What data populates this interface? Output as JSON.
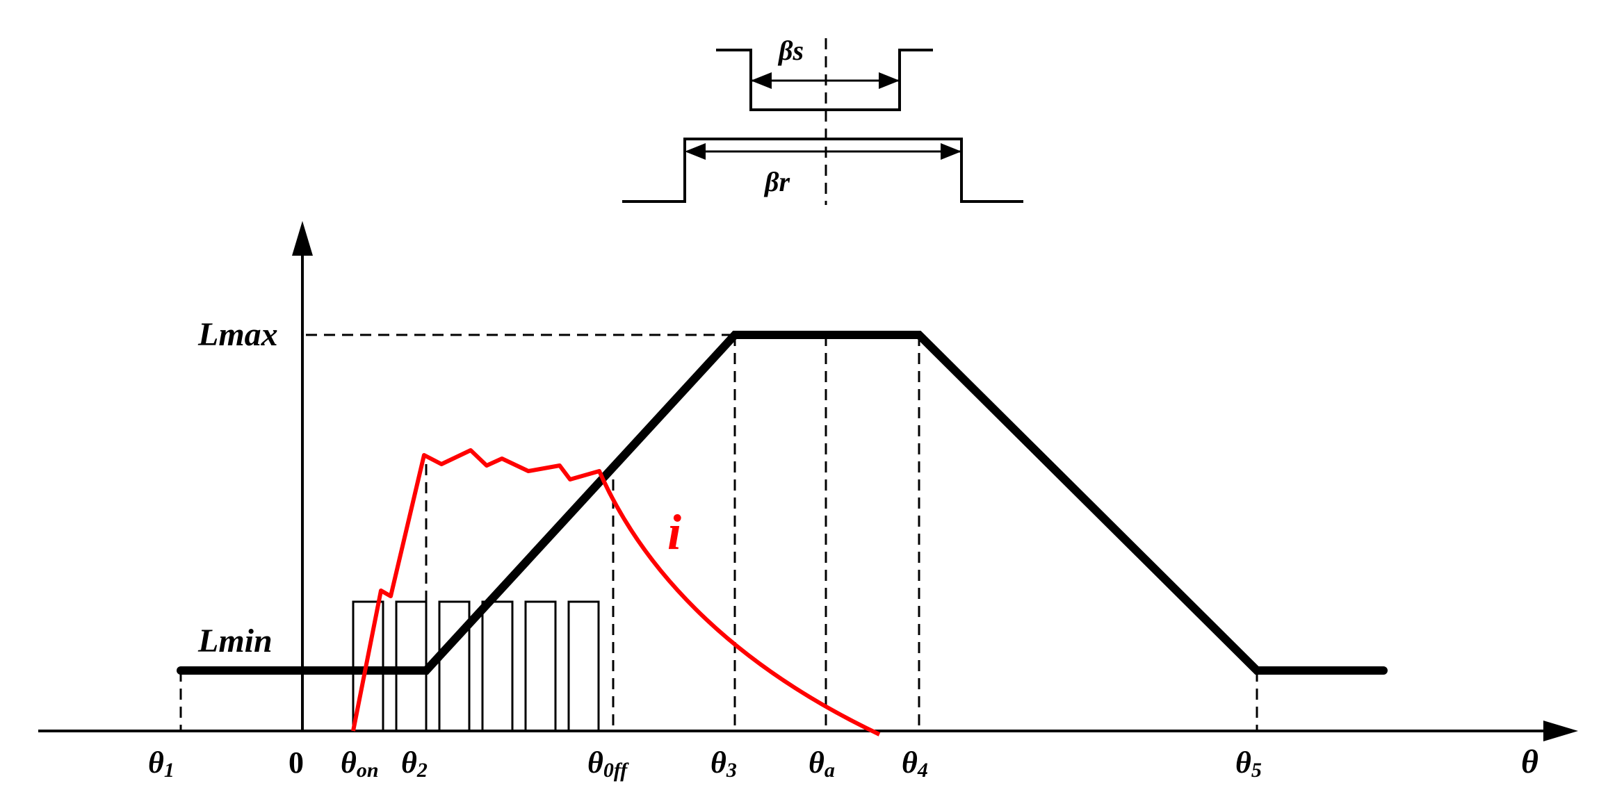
{
  "colors": {
    "ink": "#000000",
    "current": "#ff0000",
    "background": "#ffffff"
  },
  "labels": {
    "lmax": "Lmax",
    "lmin": "Lmin",
    "current": "i",
    "beta_s": "βs",
    "beta_r": "βr",
    "axis_theta": "θ"
  },
  "ticks": {
    "theta1": {
      "sym": "θ",
      "sub": "1"
    },
    "zero": "0",
    "theta_on": {
      "sym": "θ",
      "sub": "on"
    },
    "theta2": {
      "sym": "θ",
      "sub": "2"
    },
    "theta_off": {
      "sym": "θ",
      "sub": "0ff"
    },
    "theta3": {
      "sym": "θ",
      "sub": "3"
    },
    "theta_a": {
      "sym": "θ",
      "sub": "a"
    },
    "theta4": {
      "sym": "θ",
      "sub": "4"
    },
    "theta5": {
      "sym": "θ",
      "sub": "5"
    }
  }
}
